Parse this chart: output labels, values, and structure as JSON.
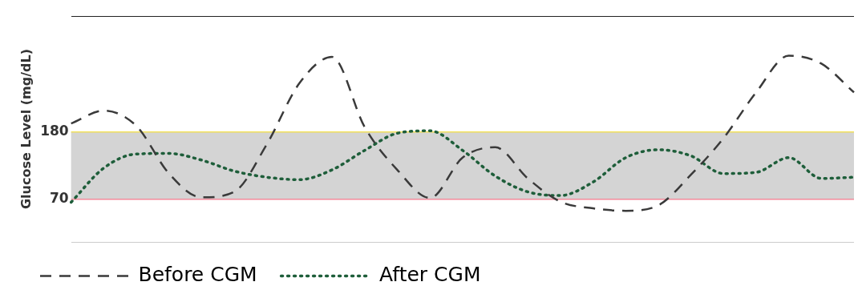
{
  "chart_data": {
    "type": "line",
    "ylabel": "Glucose Level (mg/dL)",
    "categories": [
      null,
      null,
      null,
      null,
      null,
      null,
      null,
      null,
      null,
      null,
      null,
      null,
      null,
      null,
      null,
      null,
      null,
      null,
      null,
      null,
      null,
      null,
      null,
      null,
      null
    ],
    "series": [
      {
        "name": "Before CGM",
        "color": "#3a3a3a",
        "line_style": "dashed",
        "values": [
          194,
          215,
          190,
          112,
          73,
          82,
          160,
          260,
          303,
          188,
          118,
          72,
          138,
          155,
          104,
          66,
          55,
          51,
          60,
          110,
          170,
          245,
          305,
          292,
          245
        ]
      },
      {
        "name": "After CGM",
        "color": "#1e5e3a",
        "line_style": "dotted",
        "values": [
          65,
          121,
          144,
          145,
          134,
          116,
          106,
          102,
          118,
          150,
          178,
          182,
          150,
          108,
          82,
          76,
          98,
          138,
          151,
          141,
          112,
          114,
          138,
          104,
          106
        ]
      }
    ],
    "ylim": [
      0,
      370
    ],
    "yticks": [
      {
        "value": 0,
        "label": null
      },
      70,
      180,
      {
        "value": 370,
        "label": null
      }
    ],
    "grid": "y",
    "tick_labels": "y",
    "marker": "none",
    "legend": "bottom",
    "bands": [
      {
        "axis": "y",
        "from": 70,
        "to": 180,
        "color": "#d4d4d4"
      }
    ],
    "ref_lines": [
      {
        "axis": "y",
        "value": 180,
        "color": "#f2e05a"
      },
      {
        "axis": "y",
        "value": 70,
        "color": "#f28a9a"
      }
    ]
  }
}
